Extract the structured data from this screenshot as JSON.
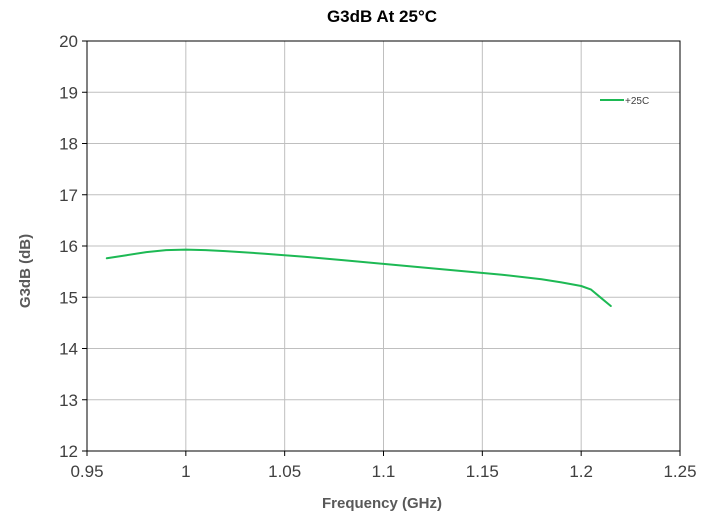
{
  "chart_data": {
    "type": "line",
    "title": "G3dB At 25°C",
    "xlabel": "Frequency (GHz)",
    "ylabel": "G3dB (dB)",
    "xlim": [
      0.95,
      1.25
    ],
    "ylim": [
      12,
      20
    ],
    "x_ticks": [
      "0.95",
      "1",
      "1.05",
      "1.1",
      "1.15",
      "1.2",
      "1.25"
    ],
    "x_tick_values": [
      0.95,
      1.0,
      1.05,
      1.1,
      1.15,
      1.2,
      1.25
    ],
    "y_ticks": [
      "12",
      "13",
      "14",
      "15",
      "16",
      "17",
      "18",
      "19",
      "20"
    ],
    "y_tick_values": [
      12,
      13,
      14,
      15,
      16,
      17,
      18,
      19,
      20
    ],
    "grid": true,
    "legend_position": "top-right",
    "series": [
      {
        "name": "+25C",
        "color": "#1db954",
        "x": [
          0.96,
          0.97,
          0.98,
          0.99,
          1.0,
          1.01,
          1.02,
          1.04,
          1.06,
          1.08,
          1.1,
          1.12,
          1.14,
          1.16,
          1.18,
          1.19,
          1.2,
          1.205,
          1.21,
          1.215
        ],
        "y": [
          15.76,
          15.82,
          15.88,
          15.92,
          15.93,
          15.92,
          15.9,
          15.85,
          15.79,
          15.72,
          15.65,
          15.58,
          15.51,
          15.44,
          15.35,
          15.29,
          15.22,
          15.15,
          14.99,
          14.83
        ]
      }
    ]
  }
}
